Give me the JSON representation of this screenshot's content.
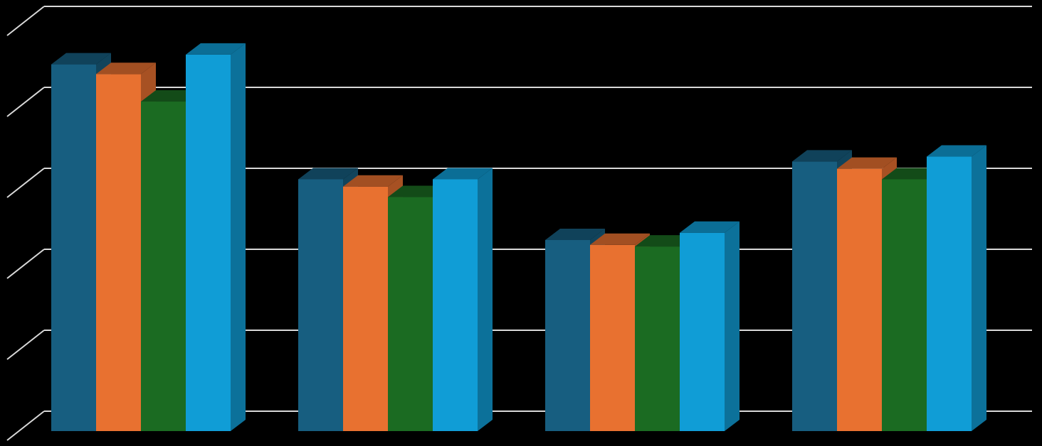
{
  "chart_data": {
    "type": "bar3d",
    "categories": [
      null,
      null,
      null,
      null
    ],
    "series": [
      {
        "color": "#175e80",
        "values": [
          4.53,
          3.11,
          2.36,
          3.33
        ]
      },
      {
        "color": "#e87130",
        "values": [
          4.41,
          3.02,
          2.3,
          3.24
        ]
      },
      {
        "color": "#1b6b22",
        "values": [
          4.07,
          2.89,
          2.28,
          3.11
        ]
      },
      {
        "color": "#109dd6",
        "values": [
          4.65,
          3.11,
          2.45,
          3.39
        ]
      }
    ],
    "ylim": [
      0,
      5
    ],
    "yticks": [
      0,
      1,
      2,
      3,
      4,
      5
    ],
    "grid": true
  }
}
